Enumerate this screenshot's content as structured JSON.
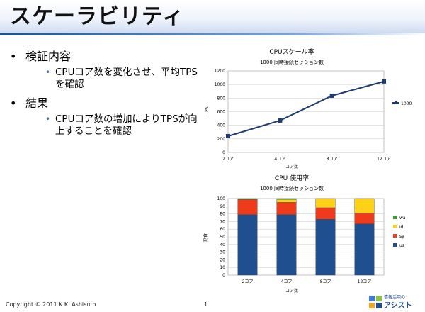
{
  "slide": {
    "title": "スケーラビリティ",
    "bullets": [
      {
        "text": "検証内容",
        "sub": [
          "CPUコア数を変化させ、平均TPSを確認"
        ]
      },
      {
        "text": "結果",
        "sub": [
          "CPUコア数の増加によりTPSが向上することを確認"
        ]
      }
    ],
    "footer": {
      "copyright": "Copyright © 2011 K.K. Ashisuto",
      "page": "1"
    },
    "logo": {
      "small": "情報活用の",
      "large": "アシスト"
    }
  },
  "chart_data": [
    {
      "type": "line",
      "title": "CPUスケール率",
      "subtitle": "1000 同時接続セッション数",
      "categories": [
        "2コア",
        "4コア",
        "8コア",
        "12コア"
      ],
      "series": [
        {
          "name": "1000",
          "values": [
            240,
            470,
            835,
            1045
          ]
        }
      ],
      "xlabel": "コア数",
      "ylabel": "TPS",
      "ylim": [
        0,
        1200
      ],
      "yticks": [
        "0",
        "200",
        "400",
        "600",
        "800",
        "1000",
        "1200"
      ],
      "grid": true,
      "legend": "right",
      "color": "#1f3a6e"
    },
    {
      "type": "bar",
      "stacked": true,
      "title": "CPU 使用率",
      "subtitle": "1000 同時接続セッション数",
      "categories": [
        "2コア",
        "4コア",
        "8コア",
        "12コア"
      ],
      "series": [
        {
          "name": "us",
          "values": [
            79,
            79,
            73,
            67
          ],
          "color": "#1f4f8f"
        },
        {
          "name": "sy",
          "values": [
            20,
            16,
            15,
            14
          ],
          "color": "#ef3b1c"
        },
        {
          "name": "id",
          "values": [
            0,
            4,
            12,
            19
          ],
          "color": "#fcd116"
        },
        {
          "name": "wa",
          "values": [
            1,
            1,
            0,
            0
          ],
          "color": "#2e9b2e"
        }
      ],
      "legend_order": [
        "wa",
        "id",
        "sy",
        "us"
      ],
      "xlabel": "コア数",
      "ylabel": "割合",
      "ylim": [
        0,
        100
      ],
      "yticks": [
        "0",
        "10",
        "20",
        "30",
        "40",
        "50",
        "60",
        "70",
        "80",
        "90",
        "100"
      ],
      "grid": true,
      "legend": "right"
    }
  ]
}
